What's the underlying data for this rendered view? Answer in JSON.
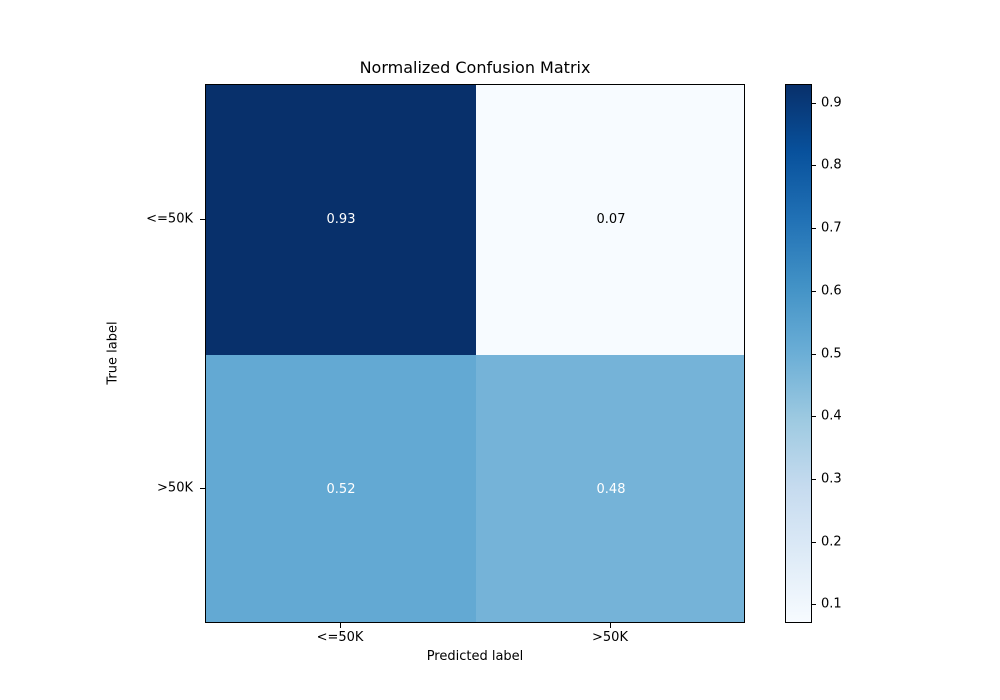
{
  "figure": {
    "background": "#ffffff"
  },
  "chart_data": {
    "type": "heatmap",
    "title": "Normalized Confusion Matrix",
    "xlabel": "Predicted label",
    "ylabel": "True label",
    "x_categories": [
      "<=50K",
      ">50K"
    ],
    "y_categories": [
      "<=50K",
      ">50K"
    ],
    "values": [
      [
        0.93,
        0.07
      ],
      [
        0.52,
        0.48
      ]
    ],
    "value_labels": [
      [
        "0.93",
        "0.07"
      ],
      [
        "0.52",
        "0.48"
      ]
    ],
    "cell_colors": [
      [
        "#08306b",
        "#f7fbff"
      ],
      [
        "#63a9d3",
        "#75b3d8"
      ]
    ],
    "cell_text_colors": [
      [
        "#ffffff",
        "#000000"
      ],
      [
        "#ffffff",
        "#ffffff"
      ]
    ],
    "colormap": "Blues",
    "vmin": 0.07,
    "vmax": 0.93,
    "colorbar_ticks": [
      0.9,
      0.8,
      0.7,
      0.6,
      0.5,
      0.4,
      0.3,
      0.2,
      0.1
    ],
    "colorbar_tick_labels": [
      "0.9",
      "0.8",
      "0.7",
      "0.6",
      "0.5",
      "0.4",
      "0.3",
      "0.2",
      "0.1"
    ],
    "colormap_stops": [
      {
        "pos": 0.0,
        "color": "#f7fbff"
      },
      {
        "pos": 0.125,
        "color": "#deebf7"
      },
      {
        "pos": 0.25,
        "color": "#c6dbef"
      },
      {
        "pos": 0.375,
        "color": "#9ecae1"
      },
      {
        "pos": 0.5,
        "color": "#6baed6"
      },
      {
        "pos": 0.625,
        "color": "#4292c6"
      },
      {
        "pos": 0.75,
        "color": "#2171b5"
      },
      {
        "pos": 0.875,
        "color": "#08519c"
      },
      {
        "pos": 1.0,
        "color": "#08306b"
      }
    ],
    "layout_hints": {
      "grid": false,
      "colorbar_position": "right"
    }
  }
}
